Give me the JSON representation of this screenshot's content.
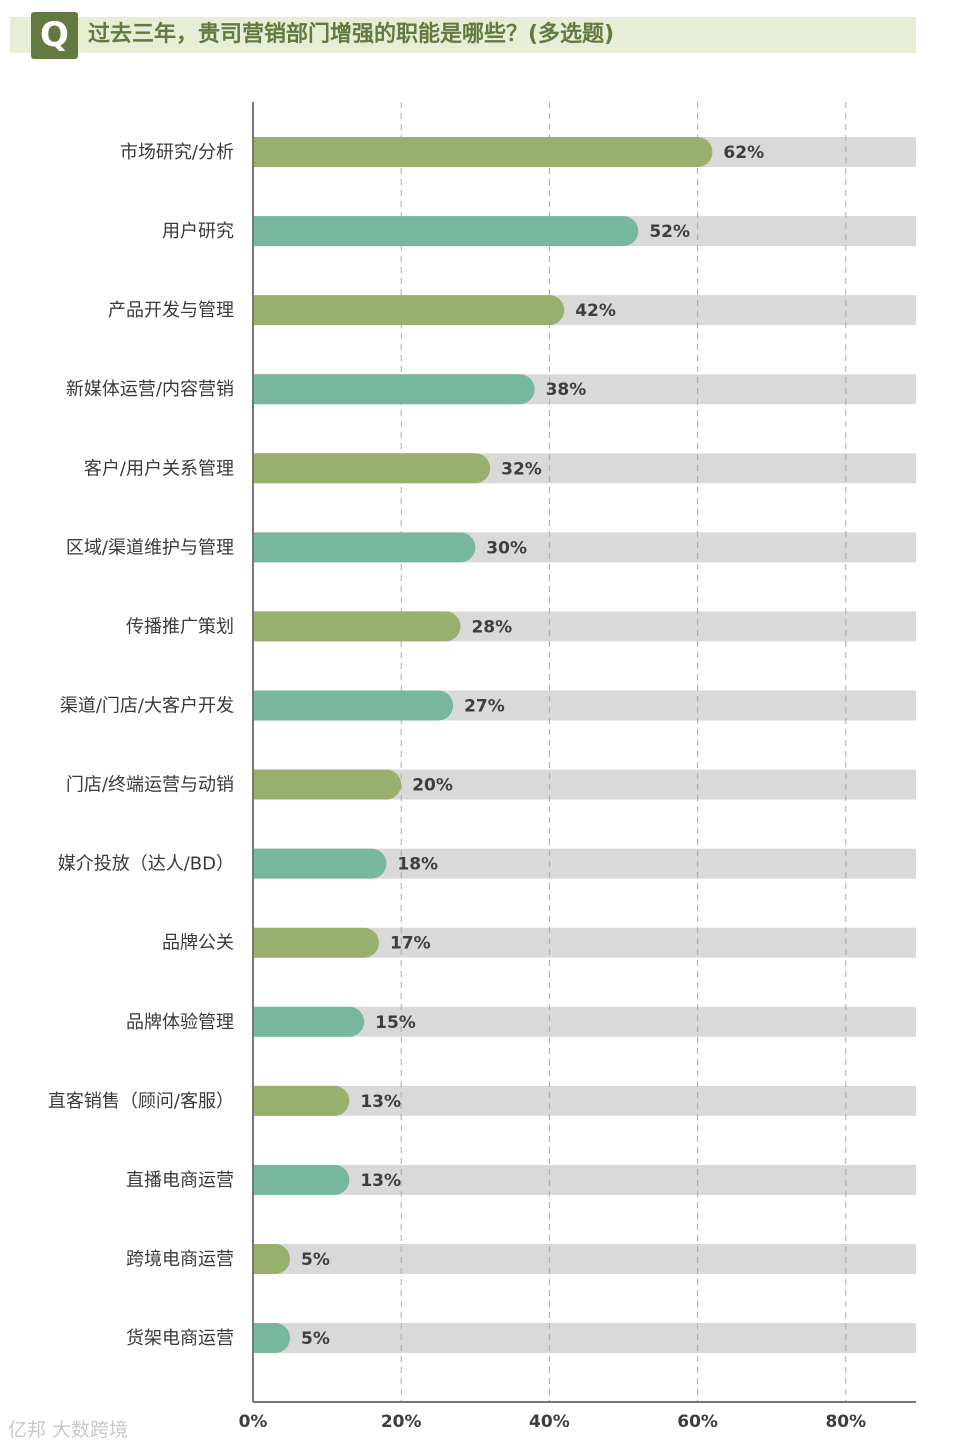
{
  "header": {
    "badge": "Q",
    "title": "过去三年，贵司营销部门增强的职能是哪些？(多选题)"
  },
  "colors": {
    "olive": "#98b06d",
    "teal": "#76b79e",
    "track": "#d9d9d9",
    "axis": "#777777",
    "grid": "#aaaaaa",
    "header_bg": "#e6eed6",
    "header_fg": "#627a40"
  },
  "chart_data": {
    "type": "bar",
    "orientation": "horizontal",
    "title": "过去三年，贵司营销部门增强的职能是哪些？(多选题)",
    "categories": [
      "市场研究/分析",
      "用户研究",
      "产品开发与管理",
      "新媒体运营/内容营销",
      "客户/用户关系管理",
      "区域/渠道维护与管理",
      "传播推广策划",
      "渠道/门店/大客户开发",
      "门店/终端运营与动销",
      "媒介投放（达人/BD）",
      "品牌公关",
      "品牌体验管理",
      "直客销售（顾问/客服）",
      "直播电商运营",
      "跨境电商运营",
      "货架电商运营"
    ],
    "values": [
      62,
      52,
      42,
      38,
      32,
      30,
      28,
      27,
      20,
      18,
      17,
      15,
      13,
      13,
      5,
      5
    ],
    "value_labels": [
      "62%",
      "52%",
      "42%",
      "38%",
      "32%",
      "30%",
      "28%",
      "27%",
      "20%",
      "18%",
      "17%",
      "15%",
      "13%",
      "13%",
      "5%",
      "5%"
    ],
    "xticks": [
      0,
      20,
      40,
      60,
      80
    ],
    "xtick_labels": [
      "0%",
      "20%",
      "40%",
      "60%",
      "80%"
    ],
    "xlim": [
      0,
      90
    ],
    "xlabel": "",
    "ylabel": "",
    "grid": "vertical dashed",
    "legend": "none"
  },
  "watermark": "亿邦 大数跨境"
}
